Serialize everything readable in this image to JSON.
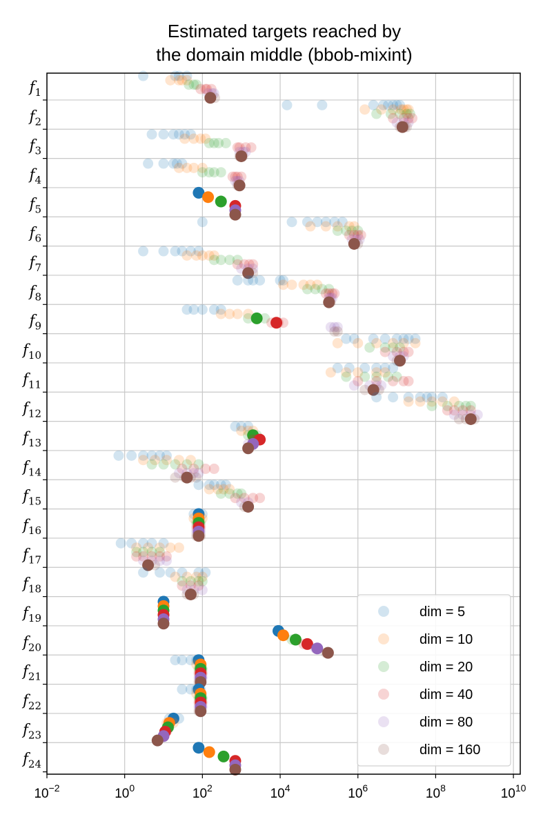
{
  "chart_data": {
    "type": "scatter",
    "title_lines": [
      "Estimated targets reached by",
      "the domain middle (bbob-mixint)"
    ],
    "xscale": "log",
    "xlim": [
      0.01,
      15000000000
    ],
    "xticks": [
      {
        "value": 0.01,
        "base": "10",
        "exp": "−2"
      },
      {
        "value": 1,
        "base": "10",
        "exp": "0"
      },
      {
        "value": 100,
        "base": "10",
        "exp": "2"
      },
      {
        "value": 10000,
        "base": "10",
        "exp": "4"
      },
      {
        "value": 1000000,
        "base": "10",
        "exp": "6"
      },
      {
        "value": 100000000,
        "base": "10",
        "exp": "8"
      },
      {
        "value": 10000000000,
        "base": "10",
        "exp": "10"
      }
    ],
    "grid": true,
    "legend_position": "bottom-right",
    "functions": [
      {
        "label": "f",
        "sub": "1"
      },
      {
        "label": "f",
        "sub": "2"
      },
      {
        "label": "f",
        "sub": "3"
      },
      {
        "label": "f",
        "sub": "4"
      },
      {
        "label": "f",
        "sub": "5"
      },
      {
        "label": "f",
        "sub": "6"
      },
      {
        "label": "f",
        "sub": "7"
      },
      {
        "label": "f",
        "sub": "8"
      },
      {
        "label": "f",
        "sub": "9"
      },
      {
        "label": "f",
        "sub": "10"
      },
      {
        "label": "f",
        "sub": "11"
      },
      {
        "label": "f",
        "sub": "12"
      },
      {
        "label": "f",
        "sub": "13"
      },
      {
        "label": "f",
        "sub": "14"
      },
      {
        "label": "f",
        "sub": "15"
      },
      {
        "label": "f",
        "sub": "16"
      },
      {
        "label": "f",
        "sub": "17"
      },
      {
        "label": "f",
        "sub": "18"
      },
      {
        "label": "f",
        "sub": "19"
      },
      {
        "label": "f",
        "sub": "20"
      },
      {
        "label": "f",
        "sub": "21"
      },
      {
        "label": "f",
        "sub": "22"
      },
      {
        "label": "f",
        "sub": "23"
      },
      {
        "label": "f",
        "sub": "24"
      }
    ],
    "series": [
      {
        "name": "dim = 5",
        "color": "#1f77b4"
      },
      {
        "name": "dim = 10",
        "color": "#ff7f0e"
      },
      {
        "name": "dim = 20",
        "color": "#2ca02c"
      },
      {
        "name": "dim = 40",
        "color": "#d62728"
      },
      {
        "name": "dim = 80",
        "color": "#9467bd"
      },
      {
        "name": "dim = 160",
        "color": "#8c564b"
      }
    ],
    "points": [
      [
        [
          3,
          20,
          40,
          25
        ],
        [
          30,
          25,
          40,
          15
        ],
        [
          60,
          70,
          45
        ],
        [
          130,
          170,
          90,
          120
        ],
        [
          180,
          140,
          200
        ],
        [
          160,
          210
        ]
      ],
      [
        [
          15000,
          120000,
          2500000,
          4500000,
          6000000,
          8000000,
          10000000,
          12000000
        ],
        [
          1500000,
          4000000,
          8000000,
          13000000,
          15000000,
          18000000,
          20000000
        ],
        [
          3000000,
          7000000,
          12000000,
          18000000,
          22000000
        ],
        [
          8000000,
          15000000,
          20000000,
          25000000
        ],
        [
          10000000,
          15000000,
          20000000
        ],
        [
          12000000,
          16000000,
          18000000
        ]
      ],
      [
        [
          5,
          10,
          18,
          25,
          35,
          50
        ],
        [
          35,
          60,
          90,
          120
        ],
        [
          150,
          200,
          260,
          400
        ],
        [
          800,
          900,
          1300,
          1800
        ],
        [
          900,
          1100,
          1300
        ],
        [
          900,
          1000,
          1100
        ]
      ],
      [
        [
          4,
          10,
          18,
          22,
          30
        ],
        [
          25,
          40,
          60,
          100
        ],
        [
          100,
          150,
          200,
          300
        ],
        [
          600,
          700,
          800,
          1000
        ],
        [
          700,
          800,
          900
        ],
        [
          800,
          900
        ]
      ],
      [
        [
          80
        ],
        [
          140
        ],
        [
          300
        ],
        [
          700
        ],
        [
          700
        ],
        [
          700
        ]
      ],
      [
        [
          100,
          20000,
          50000,
          90000,
          150000,
          250000,
          400000
        ],
        [
          60000,
          150000,
          300000,
          600000,
          800000
        ],
        [
          300000,
          500000,
          700000,
          1000000
        ],
        [
          600000,
          800000,
          1000000,
          1200000
        ],
        [
          700000,
          900000,
          1100000
        ],
        [
          800000,
          1000000
        ]
      ],
      [
        [
          3,
          10,
          20,
          30,
          50,
          80
        ],
        [
          40,
          70,
          100,
          150,
          200
        ],
        [
          200,
          300,
          500,
          800
        ],
        [
          800,
          1200,
          1600,
          2000
        ],
        [
          1000,
          1500,
          2000
        ],
        [
          1500,
          2000
        ]
      ],
      [
        [
          2000,
          800,
          1500,
          3000,
          10000,
          12000
        ],
        [
          12000,
          20000,
          40000,
          60000,
          90000
        ],
        [
          50000,
          80000,
          120000,
          180000
        ],
        [
          150000,
          180000,
          220000,
          250000
        ],
        [
          180000,
          200000,
          220000
        ],
        [
          180000,
          200000
        ]
      ],
      [
        [
          40,
          60,
          100,
          200,
          300
        ],
        [
          300,
          500,
          800,
          1500
        ],
        [
          1500,
          2500,
          4000
        ],
        [
          6000,
          9000,
          12000
        ],
        [
          200000,
          250000,
          300000
        ],
        [
          250000,
          300000
        ]
      ],
      [
        [
          500000,
          800000,
          2500000,
          5000000,
          10000000,
          15000000,
          20000000,
          30000000
        ],
        [
          300000,
          1000000,
          3000000,
          8000000,
          15000000,
          30000000
        ],
        [
          2000000,
          5000000,
          8000000,
          12000000
        ],
        [
          5000000,
          10000000,
          15000000,
          20000000
        ],
        [
          8000000,
          12000000,
          15000000
        ],
        [
          10000000,
          12000000
        ]
      ],
      [
        [
          300000,
          600000,
          1500000,
          3000000,
          5000000,
          8000000
        ],
        [
          200000,
          500000,
          1000000,
          3000000,
          5000000
        ],
        [
          500000,
          1500000,
          3000000,
          6000000,
          10000000
        ],
        [
          1000000,
          3000000,
          8000000,
          15000000,
          20000000
        ],
        [
          800000,
          2000000,
          3000000,
          4000000
        ],
        [
          1500000,
          2500000,
          3500000
        ]
      ],
      [
        [
          3000000,
          8000000,
          20000000,
          40000000,
          60000000,
          80000000,
          150000000
        ],
        [
          20000000,
          40000000,
          80000000,
          150000000,
          300000000
        ],
        [
          80000000,
          200000000,
          400000000,
          600000000,
          800000000
        ],
        [
          200000000,
          300000000,
          500000000,
          800000000
        ],
        [
          300000000,
          500000000,
          800000000,
          1200000000
        ],
        [
          400000000,
          600000000,
          800000000,
          1000000000
        ]
      ],
      [
        [
          700,
          1000,
          1500
        ],
        [
          1000,
          1500,
          2000
        ],
        [
          1500,
          2000,
          2500
        ],
        [
          2000,
          2500,
          3000
        ],
        [
          1500,
          2000
        ],
        [
          1500
        ]
      ],
      [
        [
          0.7,
          1.5,
          3,
          5,
          8,
          12
        ],
        [
          3,
          6,
          12,
          25,
          50
        ],
        [
          5,
          10,
          20,
          40,
          80
        ],
        [
          30,
          60,
          120,
          200
        ],
        [
          25,
          40,
          60,
          80
        ],
        [
          20,
          35,
          50,
          70
        ]
      ],
      [
        [
          80,
          150,
          200,
          300,
          400
        ],
        [
          150,
          250,
          350,
          500
        ],
        [
          300,
          500,
          800,
          1000
        ],
        [
          700,
          1200,
          2000,
          3000
        ],
        [
          1000,
          1500
        ],
        [
          1200,
          1500
        ]
      ],
      [
        [
          60,
          80,
          100
        ],
        [
          60,
          80,
          100
        ],
        [
          70,
          90
        ],
        [
          70,
          90
        ],
        [
          70,
          90
        ],
        [
          70,
          90
        ]
      ],
      [
        [
          0.8,
          1.5,
          3,
          5,
          10
        ],
        [
          2,
          4,
          8,
          15,
          25
        ],
        [
          2,
          3,
          5,
          8
        ],
        [
          2,
          3,
          5,
          8,
          12
        ],
        [
          3,
          5,
          8,
          12
        ],
        [
          4,
          6
        ]
      ],
      [
        [
          3,
          8,
          15,
          30,
          80,
          120
        ],
        [
          20,
          40,
          70,
          100
        ],
        [
          30,
          50,
          80,
          100
        ],
        [
          30,
          50,
          80
        ],
        [
          40,
          60,
          100
        ],
        [
          40,
          60
        ]
      ],
      [
        [
          10
        ],
        [
          10
        ],
        [
          10
        ],
        [
          10
        ],
        [
          10
        ],
        [
          10
        ]
      ],
      [
        [
          9000
        ],
        [
          12000
        ],
        [
          20000
        ],
        [
          40000
        ],
        [
          80000
        ],
        [
          150000
        ]
      ],
      [
        [
          20,
          30,
          50,
          70
        ],
        [
          70,
          90
        ],
        [
          80,
          100
        ],
        [
          80,
          100
        ],
        [
          80,
          100
        ],
        [
          80
        ]
      ],
      [
        [
          30,
          50,
          70,
          90
        ],
        [
          70,
          90
        ],
        [
          80,
          100
        ],
        [
          80,
          100
        ],
        [
          80,
          100
        ],
        [
          80
        ]
      ],
      [
        [
          18,
          25,
          14
        ],
        [
          14,
          18,
          12
        ],
        [
          12,
          14
        ],
        [
          11,
          12
        ],
        [
          10
        ],
        [
          7
        ]
      ],
      [
        [
          80
        ],
        [
          150
        ],
        [
          350
        ],
        [
          700
        ],
        [
          700
        ],
        [
          700
        ]
      ]
    ],
    "highlight": [
      [
        null,
        null,
        null,
        null,
        null,
        160
      ],
      [
        null,
        null,
        null,
        null,
        null,
        14000000
      ],
      [
        null,
        null,
        null,
        null,
        null,
        1000
      ],
      [
        null,
        null,
        null,
        null,
        null,
        900
      ],
      [
        80,
        140,
        300,
        700,
        700,
        700
      ],
      [
        null,
        null,
        null,
        null,
        null,
        800000
      ],
      [
        null,
        null,
        null,
        null,
        null,
        1500
      ],
      [
        null,
        null,
        null,
        null,
        null,
        180000
      ],
      [
        null,
        null,
        2500,
        8000,
        null,
        null
      ],
      [
        null,
        null,
        null,
        null,
        null,
        12000000
      ],
      [
        null,
        null,
        null,
        null,
        null,
        2500000
      ],
      [
        null,
        null,
        null,
        null,
        null,
        800000000
      ],
      [
        null,
        null,
        2000,
        3000,
        2000,
        1500
      ],
      [
        null,
        null,
        null,
        null,
        null,
        40
      ],
      [
        null,
        null,
        null,
        null,
        null,
        1500
      ],
      [
        80,
        80,
        80,
        80,
        80,
        80
      ],
      [
        null,
        null,
        null,
        null,
        null,
        4
      ],
      [
        null,
        null,
        null,
        null,
        null,
        50
      ],
      [
        10,
        10,
        10,
        10,
        10,
        10
      ],
      [
        9000,
        12000,
        25000,
        50000,
        90000,
        170000
      ],
      [
        80,
        90,
        90,
        90,
        90,
        90
      ],
      [
        80,
        90,
        90,
        90,
        90,
        90
      ],
      [
        18,
        14,
        13,
        11,
        10,
        7
      ],
      [
        80,
        150,
        350,
        700,
        700,
        700
      ]
    ]
  }
}
